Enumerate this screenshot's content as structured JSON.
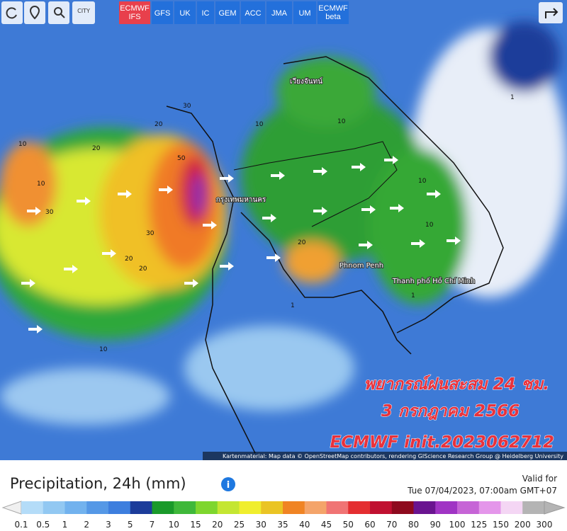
{
  "toolbar": {
    "city": "CITY",
    "models": [
      {
        "label": "ECMWF",
        "sub": "IFS",
        "active": true
      },
      {
        "label": "GFS"
      },
      {
        "label": "UK"
      },
      {
        "label": "IC"
      },
      {
        "label": "GEM"
      },
      {
        "label": "ACC"
      },
      {
        "label": "JMA"
      },
      {
        "label": "UM"
      },
      {
        "label": "ECMWF",
        "sub": "beta"
      }
    ]
  },
  "map": {
    "places": [
      "Phnom Penh",
      "Thanh phố Hồ Chí Minh",
      "กรุงเทพมหานคร",
      "เวียงจันทน์"
    ],
    "contours": [
      "10",
      "20",
      "30",
      "30",
      "20",
      "30",
      "50",
      "20",
      "10",
      "20",
      "10",
      "1",
      "10",
      "1",
      "10",
      "10",
      "10",
      "1",
      "20"
    ],
    "overlay": [
      "พยากรณ์ฝนสะสม 24 ชม.",
      "3 กรกฎาคม 2566",
      "ECMWF init.2023062712"
    ],
    "attribution": "Kartenmaterial: Map data © OpenStreetMap contributors, rendering GIScience Research Group @ Heidelberg University"
  },
  "legend": {
    "title": "Precipitation, 24h (mm)",
    "valid_label": "Valid for",
    "valid_time": "Tue 07/04/2023, 07:00am GMT+07",
    "ticks": [
      "0.1",
      "0.5",
      "1",
      "2",
      "3",
      "5",
      "7",
      "10",
      "15",
      "20",
      "25",
      "30",
      "35",
      "40",
      "45",
      "50",
      "60",
      "70",
      "80",
      "90",
      "100",
      "125",
      "150",
      "200",
      "300"
    ],
    "colors": [
      "#b4dcf8",
      "#92c8f2",
      "#72b2ee",
      "#5598e6",
      "#3d7ede",
      "#1c3c9a",
      "#1a9a2a",
      "#3fb83a",
      "#7ed62e",
      "#c4e632",
      "#f0ee2e",
      "#eac424",
      "#f08424",
      "#f4a46a",
      "#f07474",
      "#e42e30",
      "#c01030",
      "#8e0a1e",
      "#6a1490",
      "#a034c4",
      "#c664d6",
      "#e496ea",
      "#f4d6f4",
      "#b4b4b4"
    ]
  }
}
